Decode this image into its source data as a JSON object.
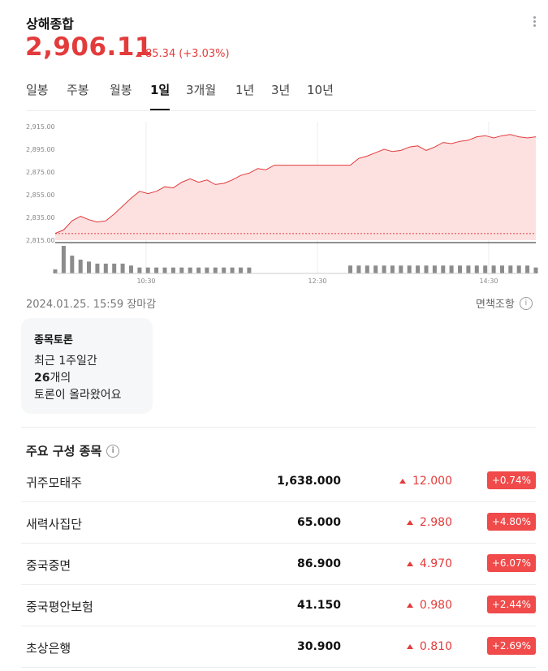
{
  "header": {
    "index_name": "상해종합",
    "price": "2,906.11",
    "change": "85.34",
    "change_pct": "(+3.03%)",
    "accent_color": "#e33b3b"
  },
  "tabs": [
    {
      "label": "일봉",
      "active": false
    },
    {
      "label": "주봉",
      "active": false
    },
    {
      "label": "월봉",
      "active": false
    },
    {
      "label": "1일",
      "active": true
    },
    {
      "label": "3개월",
      "active": false
    },
    {
      "label": "1년",
      "active": false
    },
    {
      "label": "3년",
      "active": false
    },
    {
      "label": "10년",
      "active": false
    }
  ],
  "chart_data": {
    "type": "area",
    "y_ticks": [
      "2,915.00",
      "2,895.00",
      "2,875.00",
      "2,855.00",
      "2,835.00",
      "2,815.00"
    ],
    "ylim": [
      2815,
      2915
    ],
    "x_ticks": [
      "10:30",
      "12:30",
      "14:30"
    ],
    "previous_close": 2820.77,
    "series": [
      {
        "values": [
          2821,
          2824,
          2832,
          2836,
          2833,
          2831,
          2832,
          2838,
          2845,
          2852,
          2858,
          2856,
          2858,
          2862,
          2861,
          2866,
          2869,
          2866,
          2868,
          2864,
          2865,
          2868,
          2872,
          2874,
          2878,
          2877,
          2881,
          2881,
          2881,
          2881,
          2881,
          2881,
          2881,
          2881,
          2881,
          2881,
          2887,
          2889,
          2892,
          2895,
          2893,
          2894,
          2897,
          2898,
          2894,
          2897,
          2901,
          2900,
          2902,
          2903,
          2906,
          2907,
          2905,
          2907,
          2908,
          2906,
          2905,
          2906
        ]
      }
    ],
    "volume": [
      2,
      14,
      9,
      7,
      6,
      5,
      5,
      5,
      5,
      4,
      3,
      3,
      3,
      3,
      3,
      3,
      3,
      3,
      3,
      3,
      3,
      3,
      3,
      3,
      0,
      0,
      0,
      0,
      0,
      0,
      0,
      0,
      0,
      0,
      0,
      4,
      4,
      4,
      4,
      4,
      4,
      4,
      4,
      4,
      4,
      4,
      4,
      4,
      4,
      4,
      4,
      4,
      4,
      4,
      4,
      4,
      4,
      3
    ]
  },
  "status": {
    "timestamp": "2024.01.25. 15:59 장마감",
    "disclaimer": "면책조항"
  },
  "discussion": {
    "title": "종목토론",
    "line1": "최근 1주일간",
    "count": "26",
    "count_suffix": "개의",
    "line3": "토론이 올라왔어요"
  },
  "constituents": {
    "title": "주요 구성 종목",
    "rows": [
      {
        "name": "귀주모태주",
        "price": "1,638.000",
        "change": "12.000",
        "pct": "+0.74%"
      },
      {
        "name": "새력사집단",
        "price": "65.000",
        "change": "2.980",
        "pct": "+4.80%"
      },
      {
        "name": "중국중면",
        "price": "86.900",
        "change": "4.970",
        "pct": "+6.07%"
      },
      {
        "name": "중국평안보험",
        "price": "41.150",
        "change": "0.980",
        "pct": "+2.44%"
      },
      {
        "name": "초상은행",
        "price": "30.900",
        "change": "0.810",
        "pct": "+2.69%"
      }
    ]
  }
}
